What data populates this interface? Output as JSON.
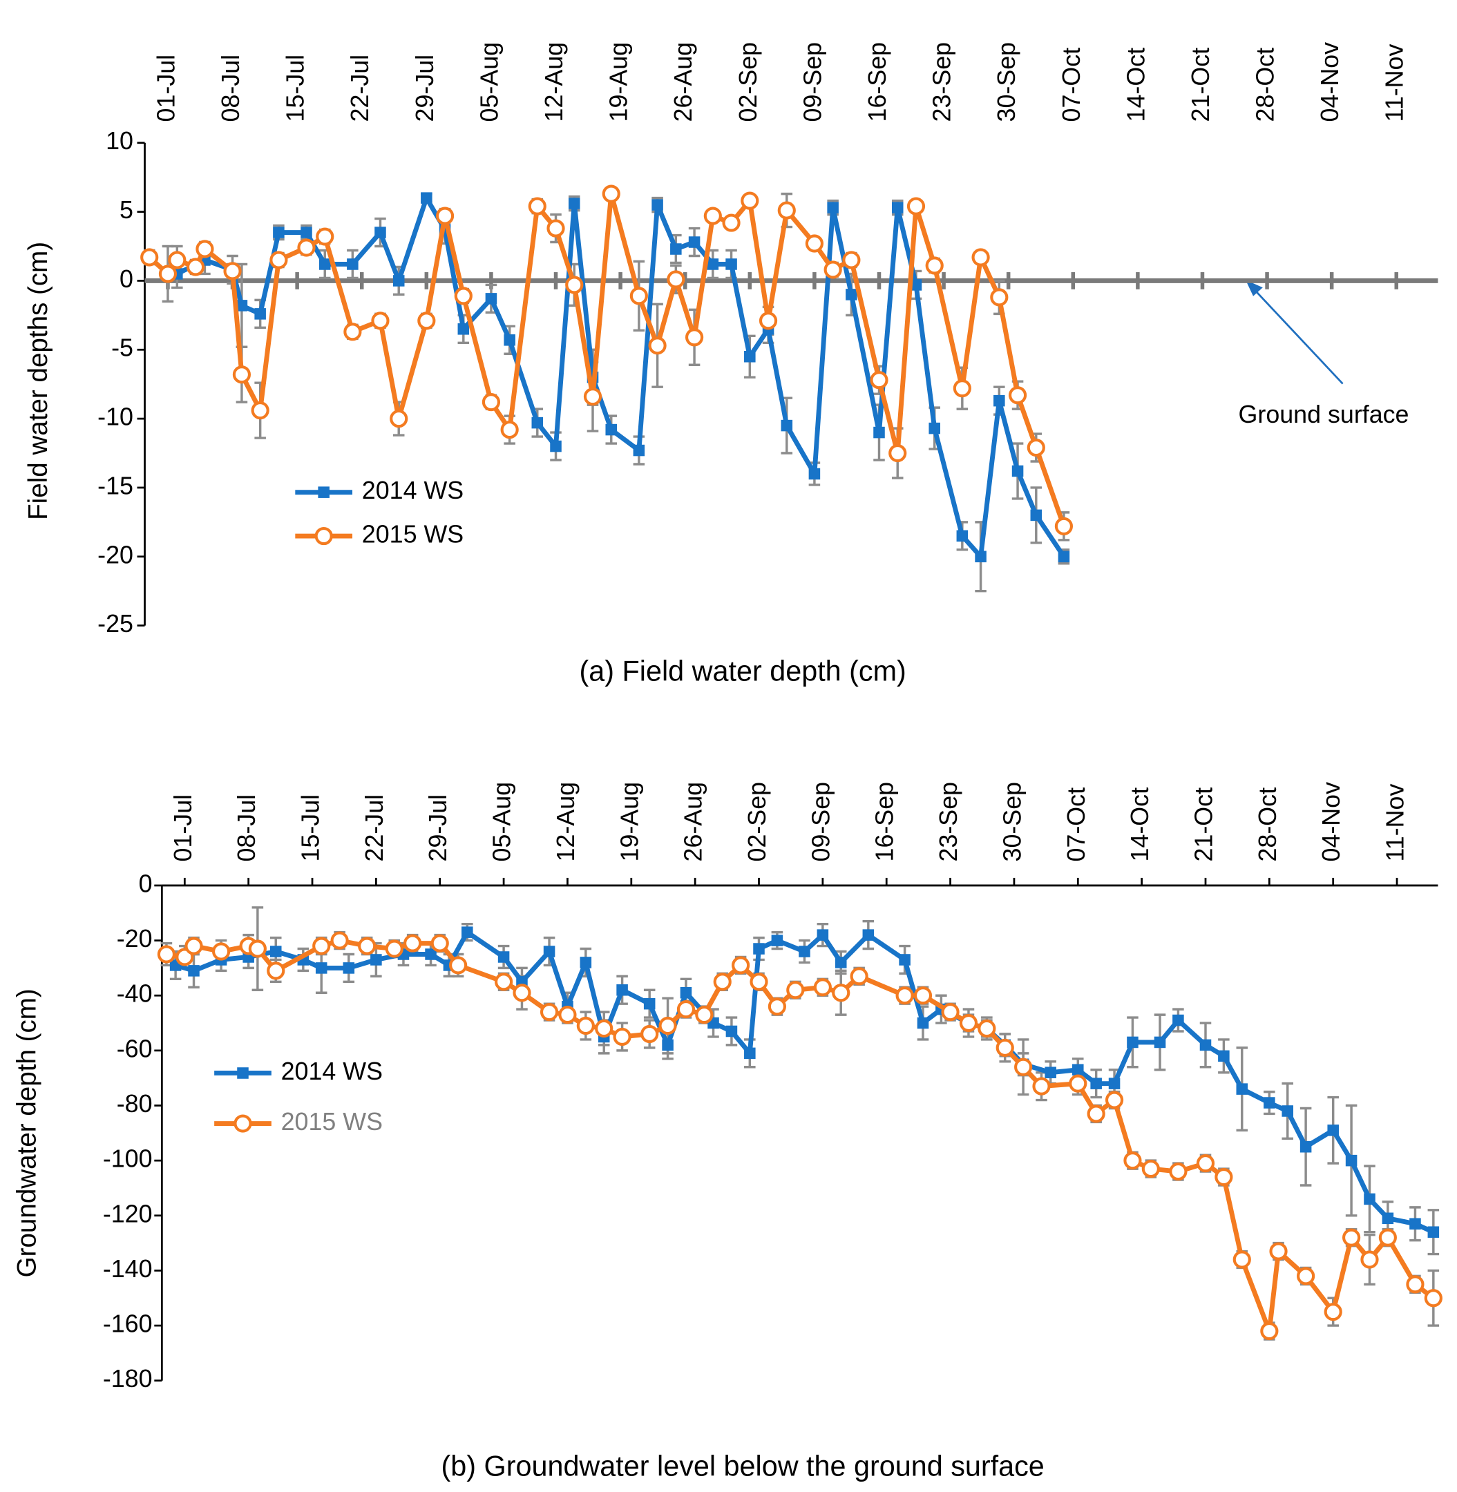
{
  "chart_data": [
    {
      "type": "line",
      "caption": "(a) Field  water depth (cm)",
      "ylabel": "Field water depths (cm)",
      "xlim": [
        -2.5,
        137.5
      ],
      "ylim": [
        -25,
        10
      ],
      "xticks": [
        {
          "value": 0,
          "label": "01-Jul"
        },
        {
          "value": 7,
          "label": "08-Jul"
        },
        {
          "value": 14,
          "label": "15-Jul"
        },
        {
          "value": 21,
          "label": "22-Jul"
        },
        {
          "value": 28,
          "label": "29-Jul"
        },
        {
          "value": 35,
          "label": "05-Aug"
        },
        {
          "value": 42,
          "label": "12-Aug"
        },
        {
          "value": 49,
          "label": "19-Aug"
        },
        {
          "value": 56,
          "label": "26-Aug"
        },
        {
          "value": 63,
          "label": "02-Sep"
        },
        {
          "value": 70,
          "label": "09-Sep"
        },
        {
          "value": 77,
          "label": "16-Sep"
        },
        {
          "value": 84,
          "label": "23-Sep"
        },
        {
          "value": 91,
          "label": "30-Sep"
        },
        {
          "value": 98,
          "label": "07-Oct"
        },
        {
          "value": 105,
          "label": "14-Oct"
        },
        {
          "value": 112,
          "label": "21-Oct"
        },
        {
          "value": 119,
          "label": "28-Oct"
        },
        {
          "value": 126,
          "label": "04-Nov"
        },
        {
          "value": 133,
          "label": "11-Nov"
        }
      ],
      "yticks": [
        10,
        5,
        0,
        -5,
        -10,
        -15,
        -20,
        -25
      ],
      "reference_line": 0,
      "annotation": "Ground surface",
      "series": [
        {
          "name": "2014 WS",
          "color": "#1874c8",
          "marker": "square",
          "x": [
            1,
            4,
            7,
            8,
            10,
            12,
            15,
            17,
            20,
            23,
            25,
            28,
            30,
            32,
            35,
            37,
            40,
            42,
            44,
            46,
            48,
            51,
            53,
            55,
            57,
            59,
            61,
            63,
            65,
            67,
            70,
            72,
            74,
            77,
            79,
            81,
            83,
            86,
            88,
            90,
            92,
            94,
            97
          ],
          "values": [
            0.5,
            1.5,
            0.8,
            -1.8,
            -2.4,
            3.5,
            3.5,
            1.2,
            1.2,
            3.5,
            0,
            6,
            3.7,
            -3.5,
            -1.3,
            -4.3,
            -10.3,
            -12,
            5.6,
            -7,
            -10.8,
            -12.3,
            5.5,
            2.3,
            2.8,
            1.2,
            1.2,
            -5.5,
            -3.5,
            -10.5,
            -14,
            5.3,
            -1,
            -11,
            5.3,
            -0.3,
            -10.7,
            -18.5,
            -20,
            -8.7,
            -13.8,
            -17,
            -20
          ],
          "errors": [
            1,
            1,
            1,
            3,
            1,
            0.5,
            0.5,
            1,
            1,
            1,
            1,
            0.3,
            1,
            1,
            1,
            1,
            1,
            1,
            0.5,
            2,
            1,
            1,
            0.5,
            1,
            1,
            1,
            1,
            1.5,
            1,
            2,
            0.8,
            0.5,
            1.5,
            2,
            0.5,
            1,
            1.5,
            1,
            2.5,
            1,
            2,
            2,
            0.5
          ]
        },
        {
          "name": "2015 WS",
          "color": "#f47b20",
          "marker": "circle",
          "x": [
            -2,
            0,
            1,
            3,
            4,
            7,
            8,
            10,
            12,
            15,
            17,
            20,
            23,
            25,
            28,
            30,
            32,
            35,
            37,
            40,
            42,
            44,
            46,
            48,
            51,
            53,
            55,
            57,
            59,
            61,
            63,
            65,
            67,
            70,
            72,
            74,
            77,
            79,
            81,
            83,
            86,
            88,
            90,
            92,
            94,
            97
          ],
          "values": [
            1.7,
            0.5,
            1.5,
            1,
            2.3,
            0.7,
            -6.8,
            -9.4,
            1.5,
            2.4,
            3.2,
            -3.7,
            -2.9,
            -10,
            -2.9,
            4.7,
            -1.1,
            -8.8,
            -10.8,
            5.4,
            3.8,
            -0.3,
            -8.4,
            6.3,
            -1.1,
            -4.7,
            0.1,
            -4.1,
            4.7,
            4.2,
            5.8,
            -2.9,
            5.1,
            2.7,
            0.8,
            1.5,
            -7.2,
            -12.5,
            5.4,
            1.1,
            -7.8,
            1.7,
            -1.2,
            -8.3,
            -12.1,
            -17.8
          ],
          "errors": [
            0.5,
            2,
            1,
            0.5,
            0.5,
            0.5,
            2,
            2,
            0.5,
            0.5,
            0.5,
            0.5,
            0.5,
            1.2,
            0.5,
            0.5,
            0.5,
            0.5,
            1,
            0.5,
            1,
            1.5,
            2.5,
            0.3,
            2.5,
            3,
            1,
            2,
            0.3,
            0.3,
            0.3,
            1,
            1.2,
            0.3,
            0.5,
            0.5,
            1,
            1.8,
            0.3,
            0.5,
            1.5,
            0.3,
            1.2,
            1,
            1,
            1
          ]
        }
      ]
    },
    {
      "type": "line",
      "caption": "(b) Groundwater  level below  the ground surface",
      "ylabel": "Groundwater  depth (cm)",
      "xlim": [
        -2.5,
        137.5
      ],
      "ylim": [
        -180,
        0
      ],
      "xticks": [
        {
          "value": 0,
          "label": "01-Jul"
        },
        {
          "value": 7,
          "label": "08-Jul"
        },
        {
          "value": 14,
          "label": "15-Jul"
        },
        {
          "value": 21,
          "label": "22-Jul"
        },
        {
          "value": 28,
          "label": "29-Jul"
        },
        {
          "value": 35,
          "label": "05-Aug"
        },
        {
          "value": 42,
          "label": "12-Aug"
        },
        {
          "value": 49,
          "label": "19-Aug"
        },
        {
          "value": 56,
          "label": "26-Aug"
        },
        {
          "value": 63,
          "label": "02-Sep"
        },
        {
          "value": 70,
          "label": "09-Sep"
        },
        {
          "value": 77,
          "label": "16-Sep"
        },
        {
          "value": 84,
          "label": "23-Sep"
        },
        {
          "value": 91,
          "label": "30-Sep"
        },
        {
          "value": 98,
          "label": "07-Oct"
        },
        {
          "value": 105,
          "label": "14-Oct"
        },
        {
          "value": 112,
          "label": "21-Oct"
        },
        {
          "value": 119,
          "label": "28-Oct"
        },
        {
          "value": 126,
          "label": "04-Nov"
        },
        {
          "value": 133,
          "label": "11-Nov"
        }
      ],
      "yticks": [
        0,
        -20,
        -40,
        -60,
        -80,
        -100,
        -120,
        -140,
        -160,
        -180
      ],
      "series": [
        {
          "name": "2014 WS",
          "color": "#1874c8",
          "marker": "square",
          "x": [
            -1,
            1,
            4,
            7,
            10,
            13,
            15,
            18,
            21,
            24,
            27,
            29,
            31,
            35,
            37,
            40,
            42,
            44,
            46,
            48,
            51,
            53,
            55,
            58,
            60,
            62,
            63,
            65,
            68,
            70,
            72,
            75,
            79,
            81,
            83,
            86,
            88,
            90,
            92,
            95,
            98,
            100,
            102,
            104,
            107,
            109,
            112,
            114,
            116,
            119,
            121,
            123,
            126,
            128,
            130,
            132,
            135,
            137
          ],
          "values": [
            -29,
            -31,
            -27,
            -26,
            -24,
            -27,
            -30,
            -30,
            -27,
            -25,
            -25,
            -29,
            -17,
            -26,
            -35,
            -24,
            -44,
            -28,
            -55,
            -38,
            -43,
            -58,
            -39,
            -50,
            -53,
            -61,
            -23,
            -20,
            -24,
            -18,
            -28,
            -18,
            -27,
            -50,
            -45,
            -50,
            -52,
            -58,
            -65,
            -68,
            -67,
            -72,
            -72,
            -57,
            -57,
            -49,
            -58,
            -62,
            -74,
            -79,
            -82,
            -95,
            -89,
            -100,
            -114,
            -121,
            -123,
            -126
          ],
          "errors": [
            5,
            6,
            4,
            4,
            5,
            4,
            9,
            5,
            6,
            4,
            4,
            4,
            3,
            4,
            5,
            5,
            5,
            5,
            6,
            5,
            5,
            5,
            5,
            5,
            5,
            5,
            4,
            3,
            4,
            4,
            4,
            5,
            5,
            6,
            5,
            5,
            4,
            4,
            4,
            4,
            4,
            5,
            5,
            9,
            10,
            4,
            8,
            6,
            15,
            4,
            10,
            14,
            12,
            20,
            12,
            6,
            6,
            8
          ]
        },
        {
          "name": "2015 WS",
          "color": "#f47b20",
          "marker": "circle",
          "x": [
            -2,
            0,
            1,
            4,
            7,
            8,
            10,
            15,
            17,
            20,
            23,
            25,
            28,
            30,
            35,
            37,
            40,
            42,
            44,
            46,
            48,
            51,
            53,
            55,
            57,
            59,
            61,
            63,
            65,
            67,
            70,
            72,
            74,
            79,
            81,
            84,
            86,
            88,
            90,
            92,
            94,
            98,
            100,
            102,
            104,
            106,
            109,
            112,
            114,
            116,
            119,
            120,
            123,
            126,
            128,
            130,
            132,
            135,
            137
          ],
          "values": [
            -25,
            -26,
            -22,
            -24,
            -22,
            -23,
            -31,
            -22,
            -20,
            -22,
            -23,
            -21,
            -21,
            -29,
            -35,
            -39,
            -46,
            -47,
            -51,
            -52,
            -55,
            -54,
            -51,
            -45,
            -47,
            -35,
            -29,
            -35,
            -44,
            -38,
            -37,
            -39,
            -33,
            -40,
            -40,
            -46,
            -50,
            -52,
            -59,
            -66,
            -73,
            -72,
            -83,
            -78,
            -100,
            -103,
            -104,
            -101,
            -106,
            -136,
            -162,
            -133,
            -142,
            -155,
            -128,
            -136,
            -128,
            -145,
            -150
          ],
          "errors": [
            4,
            4,
            3,
            4,
            4,
            15,
            4,
            3,
            3,
            3,
            3,
            3,
            3,
            4,
            3,
            6,
            3,
            3,
            5,
            6,
            5,
            5,
            10,
            3,
            3,
            3,
            3,
            3,
            3,
            3,
            3,
            8,
            3,
            3,
            3,
            3,
            3,
            3,
            5,
            10,
            5,
            4,
            3,
            3,
            3,
            3,
            3,
            3,
            3,
            3,
            3,
            3,
            3,
            5,
            3,
            9,
            3,
            3,
            10
          ]
        }
      ]
    }
  ]
}
